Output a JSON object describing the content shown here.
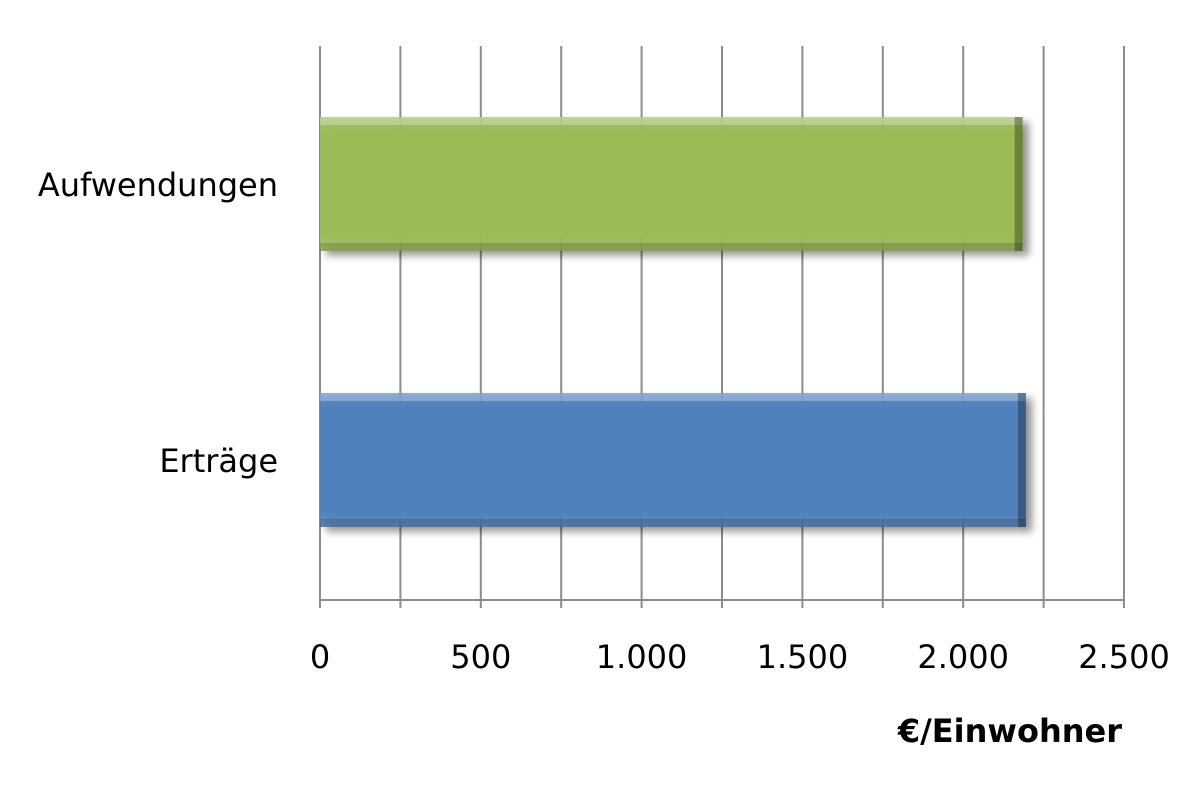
{
  "chart_data": {
    "type": "bar",
    "orientation": "horizontal",
    "categories": [
      "Aufwendungen",
      "Erträge"
    ],
    "values": [
      2185,
      2195
    ],
    "colors": [
      "#9bbb59",
      "#4f81bd"
    ],
    "title": "",
    "xlabel": "€/Einwohner",
    "ylabel": "",
    "xlim": [
      0,
      2500
    ],
    "major_ticks": [
      0,
      500,
      1000,
      1500,
      2000,
      2500
    ],
    "tick_labels": [
      "0",
      "500",
      "1.000",
      "1.500",
      "2.000",
      "2.500"
    ],
    "minor_step": 250,
    "grid": "vertical",
    "legend": "none"
  }
}
